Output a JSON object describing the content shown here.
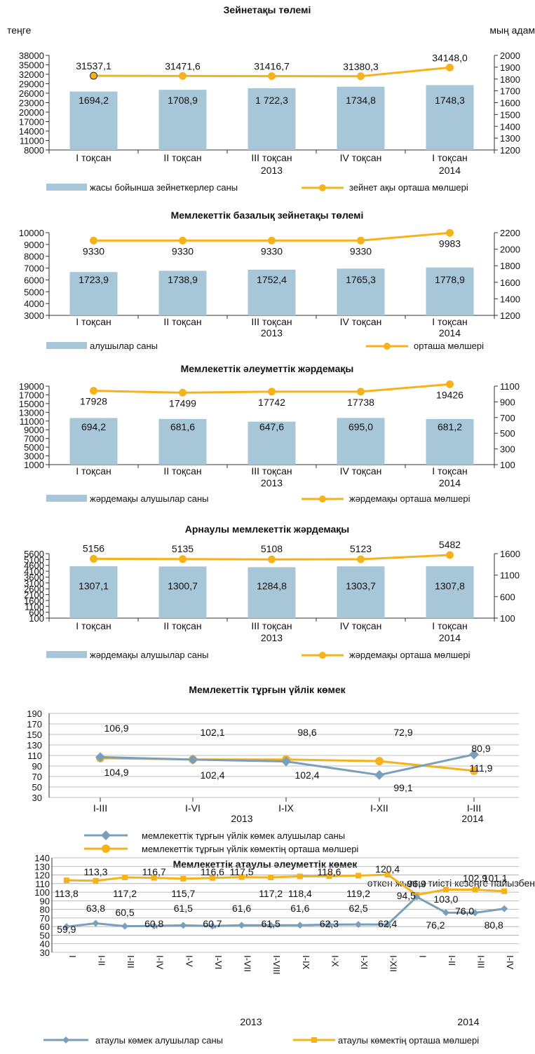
{
  "colors": {
    "bar": "#a7c7d8",
    "line": "#f6b21b",
    "line_marker_dark": "#222222",
    "line_blue": "#7a9fba",
    "grid": "#aaaaaa",
    "axis": "#333333"
  },
  "chart_data": [
    {
      "type": "bar",
      "title": "Зейнетақы төлемі",
      "left_unit": "теңге",
      "right_unit": "мың адам",
      "categories": [
        "I тоқсан",
        "II тоқсан",
        "III тоқсан",
        "IV тоқсан",
        "I тоқсан"
      ],
      "years": [
        {
          "label": "2013"
        },
        {
          "label": "2014"
        }
      ],
      "left_ticks": [
        "8000",
        "11000",
        "14000",
        "17000",
        "20000",
        "23000",
        "26000",
        "29000",
        "32000",
        "35000",
        "38000"
      ],
      "right_ticks": [
        "1200",
        "1300",
        "1400",
        "1500",
        "1600",
        "1700",
        "1800",
        "1900",
        "2000"
      ],
      "series": [
        {
          "name": "жасы бойынша зейнеткерлер саны",
          "kind": "bar",
          "axis": "right",
          "values": [
            1694.2,
            1708.9,
            1722.3,
            1734.8,
            1748.3
          ],
          "labels": [
            "1694,2",
            "1708,9",
            "1 722,3",
            "1734,8",
            "1748,3"
          ]
        },
        {
          "name": "зейнет ақы орташа мөлшері",
          "kind": "line",
          "axis": "left",
          "values": [
            31537.1,
            31471.6,
            31416.7,
            31380.3,
            34148.0
          ],
          "labels": [
            "31537,1",
            "31471,6",
            "31416,7",
            "31380,3",
            "34148,0"
          ]
        }
      ]
    },
    {
      "type": "bar",
      "title": "Мемлекеттік базалық зейнетақы төлемі",
      "categories": [
        "I тоқсан",
        "II тоқсан",
        "III тоқсан",
        "IV тоқсан",
        "I тоқсан"
      ],
      "years": [
        {
          "label": "2013"
        },
        {
          "label": "2014"
        }
      ],
      "left_ticks": [
        "3000",
        "4000",
        "5000",
        "6000",
        "7000",
        "8000",
        "9000",
        "10000"
      ],
      "right_ticks": [
        "1200",
        "1400",
        "1600",
        "1800",
        "2000",
        "2200"
      ],
      "series": [
        {
          "name": "алушылар саны",
          "kind": "bar",
          "axis": "right",
          "values": [
            1723.9,
            1738.9,
            1752.4,
            1765.3,
            1778.9
          ],
          "labels": [
            "1723,9",
            "1738,9",
            "1752,4",
            "1765,3",
            "1778,9"
          ]
        },
        {
          "name": "орташа мөлшері",
          "kind": "line",
          "axis": "left",
          "values": [
            9330,
            9330,
            9330,
            9330,
            9983
          ],
          "labels": [
            "9330",
            "9330",
            "9330",
            "9330",
            "9983"
          ]
        }
      ]
    },
    {
      "type": "bar",
      "title": "Мемлекеттік әлеуметтік жәрдемақы",
      "categories": [
        "I тоқсан",
        "II тоқсан",
        "III тоқсан",
        "IV тоқсан",
        "I тоқсан"
      ],
      "years": [
        {
          "label": "2013"
        },
        {
          "label": "2014"
        }
      ],
      "left_ticks": [
        "1000",
        "3000",
        "5000",
        "7000",
        "9000",
        "11000",
        "13000",
        "15000",
        "17000",
        "19000"
      ],
      "right_ticks": [
        "100",
        "300",
        "500",
        "700",
        "900",
        "1100"
      ],
      "series": [
        {
          "name": "жәрдемақы алушылар саны",
          "kind": "bar",
          "axis": "right",
          "values": [
            694.2,
            681.6,
            647.6,
            695.0,
            681.2
          ],
          "labels": [
            "694,2",
            "681,6",
            "647,6",
            "695,0",
            "681,2"
          ]
        },
        {
          "name": "жәрдемақы орташа мөлшері",
          "kind": "line",
          "axis": "left",
          "values": [
            17928,
            17499,
            17742,
            17738,
            19426
          ],
          "labels": [
            "17928",
            "17499",
            "17742",
            "17738",
            "19426"
          ]
        }
      ]
    },
    {
      "type": "bar",
      "title": "Арнаулы мемлекеттік жәрдемақы",
      "categories": [
        "I тоқсан",
        "II тоқсан",
        "III тоқсан",
        "IV тоқсан",
        "I тоқсан"
      ],
      "years": [
        {
          "label": "2013"
        },
        {
          "label": "2014"
        }
      ],
      "left_ticks": [
        "100",
        "600",
        "1100",
        "1600",
        "2100",
        "2600",
        "3100",
        "3600",
        "4100",
        "4600",
        "5100",
        "5600"
      ],
      "right_ticks": [
        "100",
        "600",
        "1100",
        "1600"
      ],
      "series": [
        {
          "name": "жәрдемақы алушылар саны",
          "kind": "bar",
          "axis": "right",
          "values": [
            1307.1,
            1300.7,
            1284.8,
            1303.7,
            1307.8
          ],
          "labels": [
            "1307,1",
            "1300,7",
            "1284,8",
            "1303,7",
            "1307,8"
          ]
        },
        {
          "name": "жәрдемақы орташа мөлшері",
          "kind": "line",
          "axis": "left",
          "values": [
            5156,
            5135,
            5108,
            5123,
            5482
          ],
          "labels": [
            "5156",
            "5135",
            "5108",
            "5123",
            "5482"
          ]
        }
      ]
    },
    {
      "type": "line",
      "title": "Мемлекеттік тұрғын үйлік көмек",
      "categories": [
        "I-III",
        "I-VI",
        "I-IX",
        "I-XII",
        "I-III"
      ],
      "years": [
        {
          "label": "2013"
        },
        {
          "label": "2014"
        }
      ],
      "y_ticks": [
        "30",
        "50",
        "70",
        "90",
        "110",
        "130",
        "150",
        "170",
        "190"
      ],
      "ylim": [
        30,
        190
      ],
      "series": [
        {
          "name": "мемлекеттік тұрғын үйлік көмек алушылар саны",
          "color": "blue",
          "values": [
            106.9,
            102.1,
            98.6,
            72.9,
            111.9
          ],
          "labels": [
            "106,9",
            "102,1",
            "98,6",
            "72,9",
            "111,9"
          ]
        },
        {
          "name": "мемлекеттік тұрғын үйлік көмектің орташа мөлшері",
          "color": "orange",
          "values": [
            104.9,
            102.4,
            102.4,
            99.1,
            80.9
          ],
          "labels": [
            "104,9",
            "102,4",
            "102,4",
            "99,1",
            "80,9"
          ]
        }
      ]
    },
    {
      "type": "line",
      "title": "Мемлекеттік атаулы әлеуметтік көмек",
      "subtitle": "өткен жылғы тиісті кезеңге пайызбен",
      "categories": [
        "I",
        "I-II",
        "I-III",
        "I-IV",
        "I-V",
        "I-VI",
        "I-VII",
        "I-VIII",
        "I-IX",
        "I-X",
        "I-XI",
        "I-XII",
        "I",
        "I-II",
        "I-III",
        "I-IV"
      ],
      "years": [
        {
          "label": "2013"
        },
        {
          "label": "2014"
        }
      ],
      "y_ticks": [
        "30",
        "40",
        "50",
        "60",
        "70",
        "80",
        "90",
        "100",
        "110",
        "120",
        "130",
        "140"
      ],
      "ylim": [
        30,
        140
      ],
      "series": [
        {
          "name": "атаулы көмек алушылар саны",
          "color": "blue",
          "values": [
            59.9,
            63.8,
            60.5,
            60.8,
            61.5,
            60.7,
            61.6,
            61.5,
            61.6,
            62.3,
            62.5,
            62.4,
            94.5,
            76.2,
            76.0,
            80.8
          ],
          "labels": [
            "59,9",
            "63,8",
            "60,5",
            "60,8",
            "61,5",
            "60,7",
            "61,6",
            "61,5",
            "61,6",
            "62,3",
            "62,5",
            "62,4",
            "94,5",
            "76,2",
            "76,0",
            "80,8"
          ]
        },
        {
          "name": "атаулы көмектің орташа мөлшері",
          "color": "orange",
          "values": [
            113.8,
            113.3,
            117.2,
            116.7,
            115.7,
            116.6,
            117.5,
            117.2,
            118.4,
            118.6,
            119.2,
            120.4,
            96.9,
            103.0,
            102.9,
            101.1
          ],
          "labels": [
            "113,8",
            "113,3",
            "117,2",
            "116,7",
            "115,7",
            "116,6",
            "117,5",
            "117,2",
            "118,4",
            "118,6",
            "119,2",
            "120,4",
            "96,9",
            "103,0",
            "102,9",
            "101,1"
          ]
        }
      ]
    }
  ]
}
